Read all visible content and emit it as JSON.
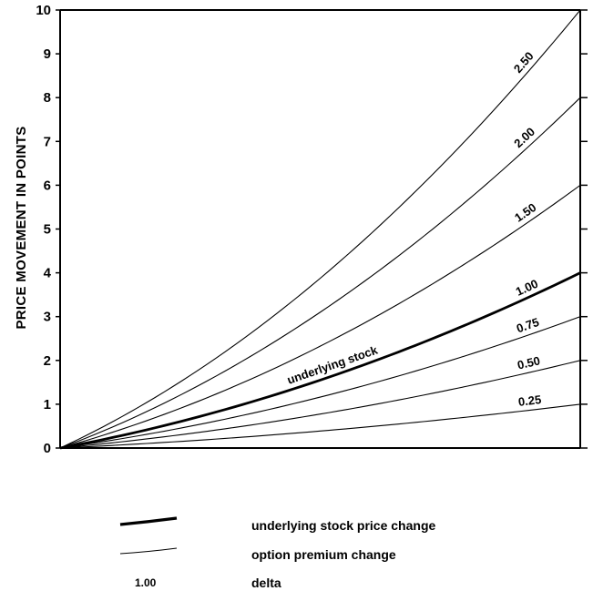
{
  "chart_data": {
    "type": "line",
    "title": "",
    "xlabel": "",
    "ylabel": "PRICE MOVEMENT IN POINTS",
    "ylim": [
      0,
      10
    ],
    "y_ticks": [
      "0",
      "1",
      "2",
      "3",
      "4",
      "5",
      "6",
      "7",
      "8",
      "9",
      "10"
    ],
    "grid": false,
    "curve_shape": "convex, rising from 0 at the origin to its end value at the right axis",
    "series": [
      {
        "name": "2.50",
        "end_value": 10,
        "bold": false,
        "colors": "#000000"
      },
      {
        "name": "2.00",
        "end_value": 8,
        "bold": false
      },
      {
        "name": "1.50",
        "end_value": 6,
        "bold": false
      },
      {
        "name": "1.00",
        "end_value": 4,
        "bold": true,
        "annotation": "underlying stock"
      },
      {
        "name": "0.75",
        "end_value": 3,
        "bold": false
      },
      {
        "name": "0.50",
        "end_value": 2,
        "bold": false
      },
      {
        "name": "0.25",
        "end_value": 1,
        "bold": false
      }
    ]
  },
  "legend": {
    "placement": "bottom",
    "items": [
      {
        "symbol": "thick-line",
        "label": "underlying stock price change"
      },
      {
        "symbol": "thin-line",
        "label": "option premium change"
      },
      {
        "symbol": "text",
        "symbol_text": "1.00",
        "label": "delta"
      }
    ]
  },
  "colors": {
    "ink": "#000000",
    "background": "#ffffff"
  }
}
